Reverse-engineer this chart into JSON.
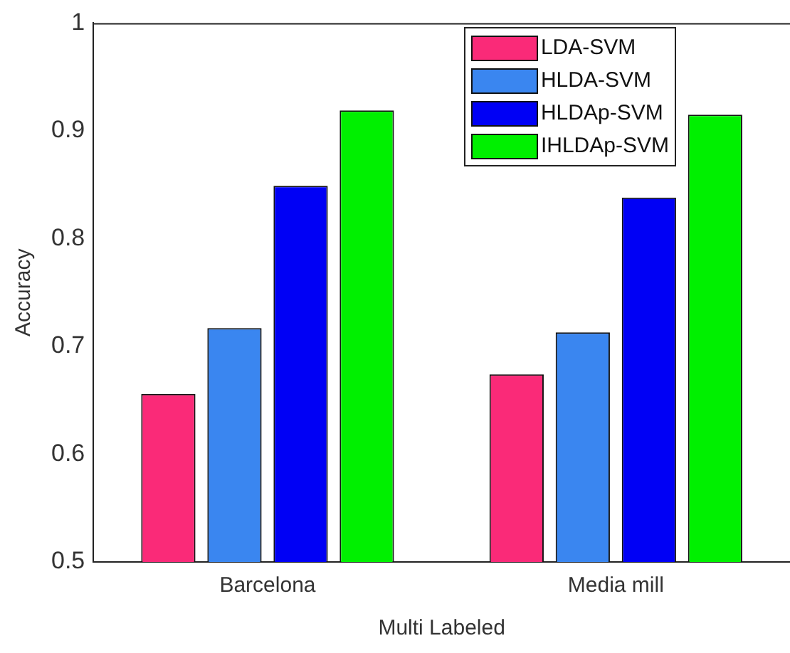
{
  "chart_data": {
    "type": "bar",
    "xlabel": "Multi Labeled",
    "ylabel": "Accuracy",
    "categories": [
      "Barcelona",
      "Media mill"
    ],
    "series": [
      {
        "name": "LDA-SVM",
        "color": "#fa2a78",
        "values": [
          0.656,
          0.674
        ]
      },
      {
        "name": "HLDA-SVM",
        "color": "#3a86f0",
        "values": [
          0.717,
          0.713
        ]
      },
      {
        "name": "HLDAp-SVM",
        "color": "#0000f5",
        "values": [
          0.849,
          0.838
        ]
      },
      {
        "name": "IHLDAp-SVM",
        "color": "#00f000",
        "values": [
          0.919,
          0.915
        ]
      }
    ],
    "ylim": [
      0.5,
      1
    ],
    "yticks": [
      0.5,
      0.6,
      0.7,
      0.8,
      0.9,
      1
    ],
    "grid": false,
    "legend": "top right"
  }
}
